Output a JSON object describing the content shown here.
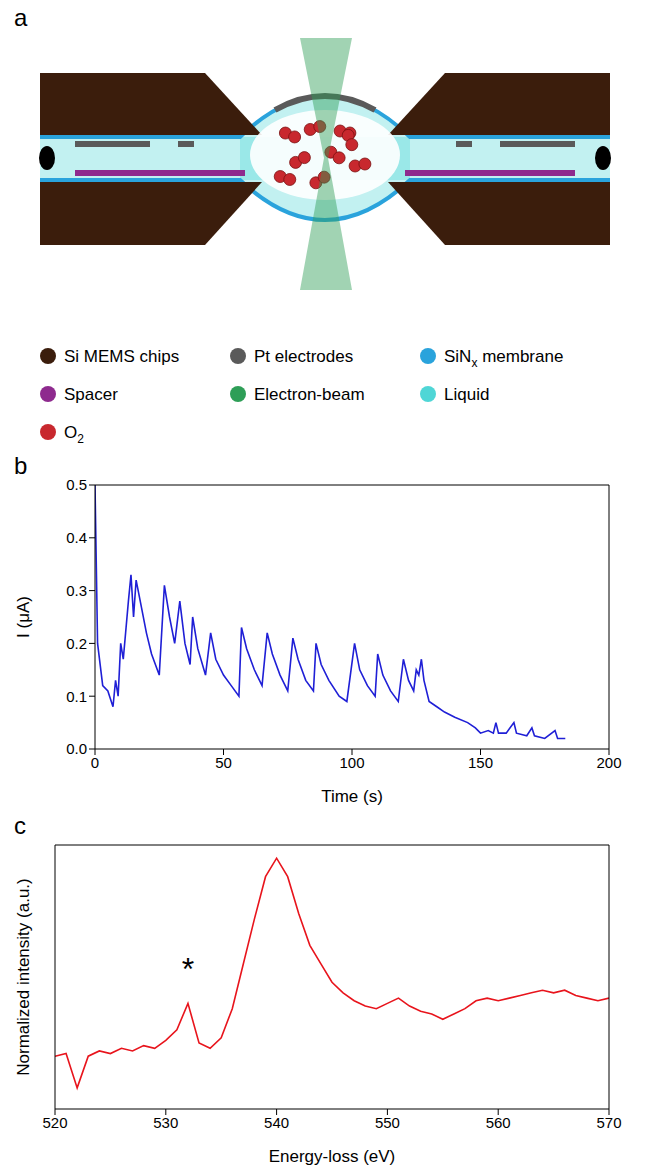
{
  "panel_a": {
    "letter": "a",
    "key": [
      {
        "label": "Si MEMS chips",
        "color": "#3b1d0c"
      },
      {
        "label": "Pt electrodes",
        "color": "#5a5a5a"
      },
      {
        "label": "SiN",
        "subscript": "x",
        "label_after": " membrane",
        "color": "#2aa3dc"
      },
      {
        "label": "Spacer",
        "color": "#8e2a8e"
      },
      {
        "label": "Electron-beam",
        "color": "#2e9e57"
      },
      {
        "label": "Liquid",
        "color": "#4fd6d6"
      },
      {
        "label": "O",
        "subscript": "2",
        "color": "#c8282e"
      }
    ]
  },
  "chart_data": [
    {
      "letter": "b",
      "type": "line",
      "x_label": "Time (s)",
      "y_label": "I (μA)",
      "x": [
        0,
        1,
        3,
        5,
        7,
        8,
        9,
        10,
        11,
        13,
        14,
        15,
        16,
        18,
        20,
        22,
        25,
        27,
        29,
        31,
        33,
        35,
        37,
        38,
        40,
        43,
        45,
        47,
        50,
        53,
        56,
        57,
        59,
        62,
        65,
        67,
        69,
        72,
        75,
        77,
        79,
        82,
        85,
        86,
        88,
        91,
        95,
        98,
        101,
        103,
        106,
        109,
        110,
        112,
        115,
        118,
        120,
        122,
        124,
        125,
        126,
        127,
        128,
        130,
        133,
        136,
        140,
        145,
        148,
        150,
        153,
        155,
        156,
        157,
        160,
        163,
        164,
        168,
        170,
        171,
        175,
        179,
        180,
        183
      ],
      "values": [
        0.5,
        0.2,
        0.12,
        0.11,
        0.08,
        0.13,
        0.1,
        0.2,
        0.17,
        0.28,
        0.33,
        0.25,
        0.32,
        0.27,
        0.22,
        0.18,
        0.14,
        0.31,
        0.25,
        0.2,
        0.28,
        0.2,
        0.16,
        0.25,
        0.19,
        0.14,
        0.22,
        0.17,
        0.14,
        0.12,
        0.1,
        0.23,
        0.19,
        0.15,
        0.12,
        0.22,
        0.18,
        0.14,
        0.11,
        0.21,
        0.17,
        0.13,
        0.11,
        0.2,
        0.16,
        0.13,
        0.1,
        0.09,
        0.2,
        0.15,
        0.12,
        0.1,
        0.18,
        0.14,
        0.11,
        0.09,
        0.17,
        0.13,
        0.11,
        0.15,
        0.14,
        0.17,
        0.13,
        0.09,
        0.08,
        0.07,
        0.06,
        0.05,
        0.04,
        0.03,
        0.035,
        0.03,
        0.05,
        0.03,
        0.03,
        0.05,
        0.03,
        0.025,
        0.04,
        0.025,
        0.02,
        0.035,
        0.02,
        0.02
      ],
      "color": "#1f1fd6",
      "xlim": [
        0,
        200
      ],
      "xticks": [
        0,
        50,
        100,
        150,
        200
      ],
      "ylim": [
        0,
        0.5
      ],
      "yticks": [
        {
          "value": 0,
          "label": "0.0"
        },
        0.1,
        0.2,
        0.3,
        0.4,
        0.5
      ]
    },
    {
      "letter": "c",
      "type": "line",
      "x_label": "Energy-loss (eV)",
      "y_label": "Normalized intensity (a.u.)",
      "x": [
        520,
        521,
        522,
        523,
        524,
        525,
        526,
        527,
        528,
        529,
        530,
        531,
        532,
        533,
        534,
        535,
        536,
        537,
        538,
        539,
        540,
        541,
        542,
        543,
        544,
        545,
        546,
        547,
        548,
        549,
        550,
        551,
        552,
        553,
        554,
        555,
        556,
        557,
        558,
        559,
        560,
        561,
        562,
        563,
        564,
        565,
        566,
        567,
        568,
        569,
        570
      ],
      "values": [
        0.2,
        0.21,
        0.08,
        0.2,
        0.22,
        0.21,
        0.23,
        0.22,
        0.24,
        0.23,
        0.26,
        0.3,
        0.4,
        0.25,
        0.23,
        0.27,
        0.38,
        0.55,
        0.72,
        0.88,
        0.95,
        0.88,
        0.74,
        0.62,
        0.55,
        0.48,
        0.44,
        0.41,
        0.39,
        0.38,
        0.4,
        0.42,
        0.39,
        0.37,
        0.36,
        0.34,
        0.36,
        0.38,
        0.41,
        0.42,
        0.41,
        0.42,
        0.43,
        0.44,
        0.45,
        0.44,
        0.45,
        0.43,
        0.42,
        0.41,
        0.42
      ],
      "color": "#e8141c",
      "xlim": [
        520,
        570
      ],
      "xticks": [
        520,
        530,
        540,
        550,
        560,
        570
      ],
      "ylim": [
        0,
        1
      ],
      "tick_labels": "x",
      "annotations": [
        {
          "text": "*",
          "x": 532,
          "y": 0.53
        }
      ]
    }
  ]
}
